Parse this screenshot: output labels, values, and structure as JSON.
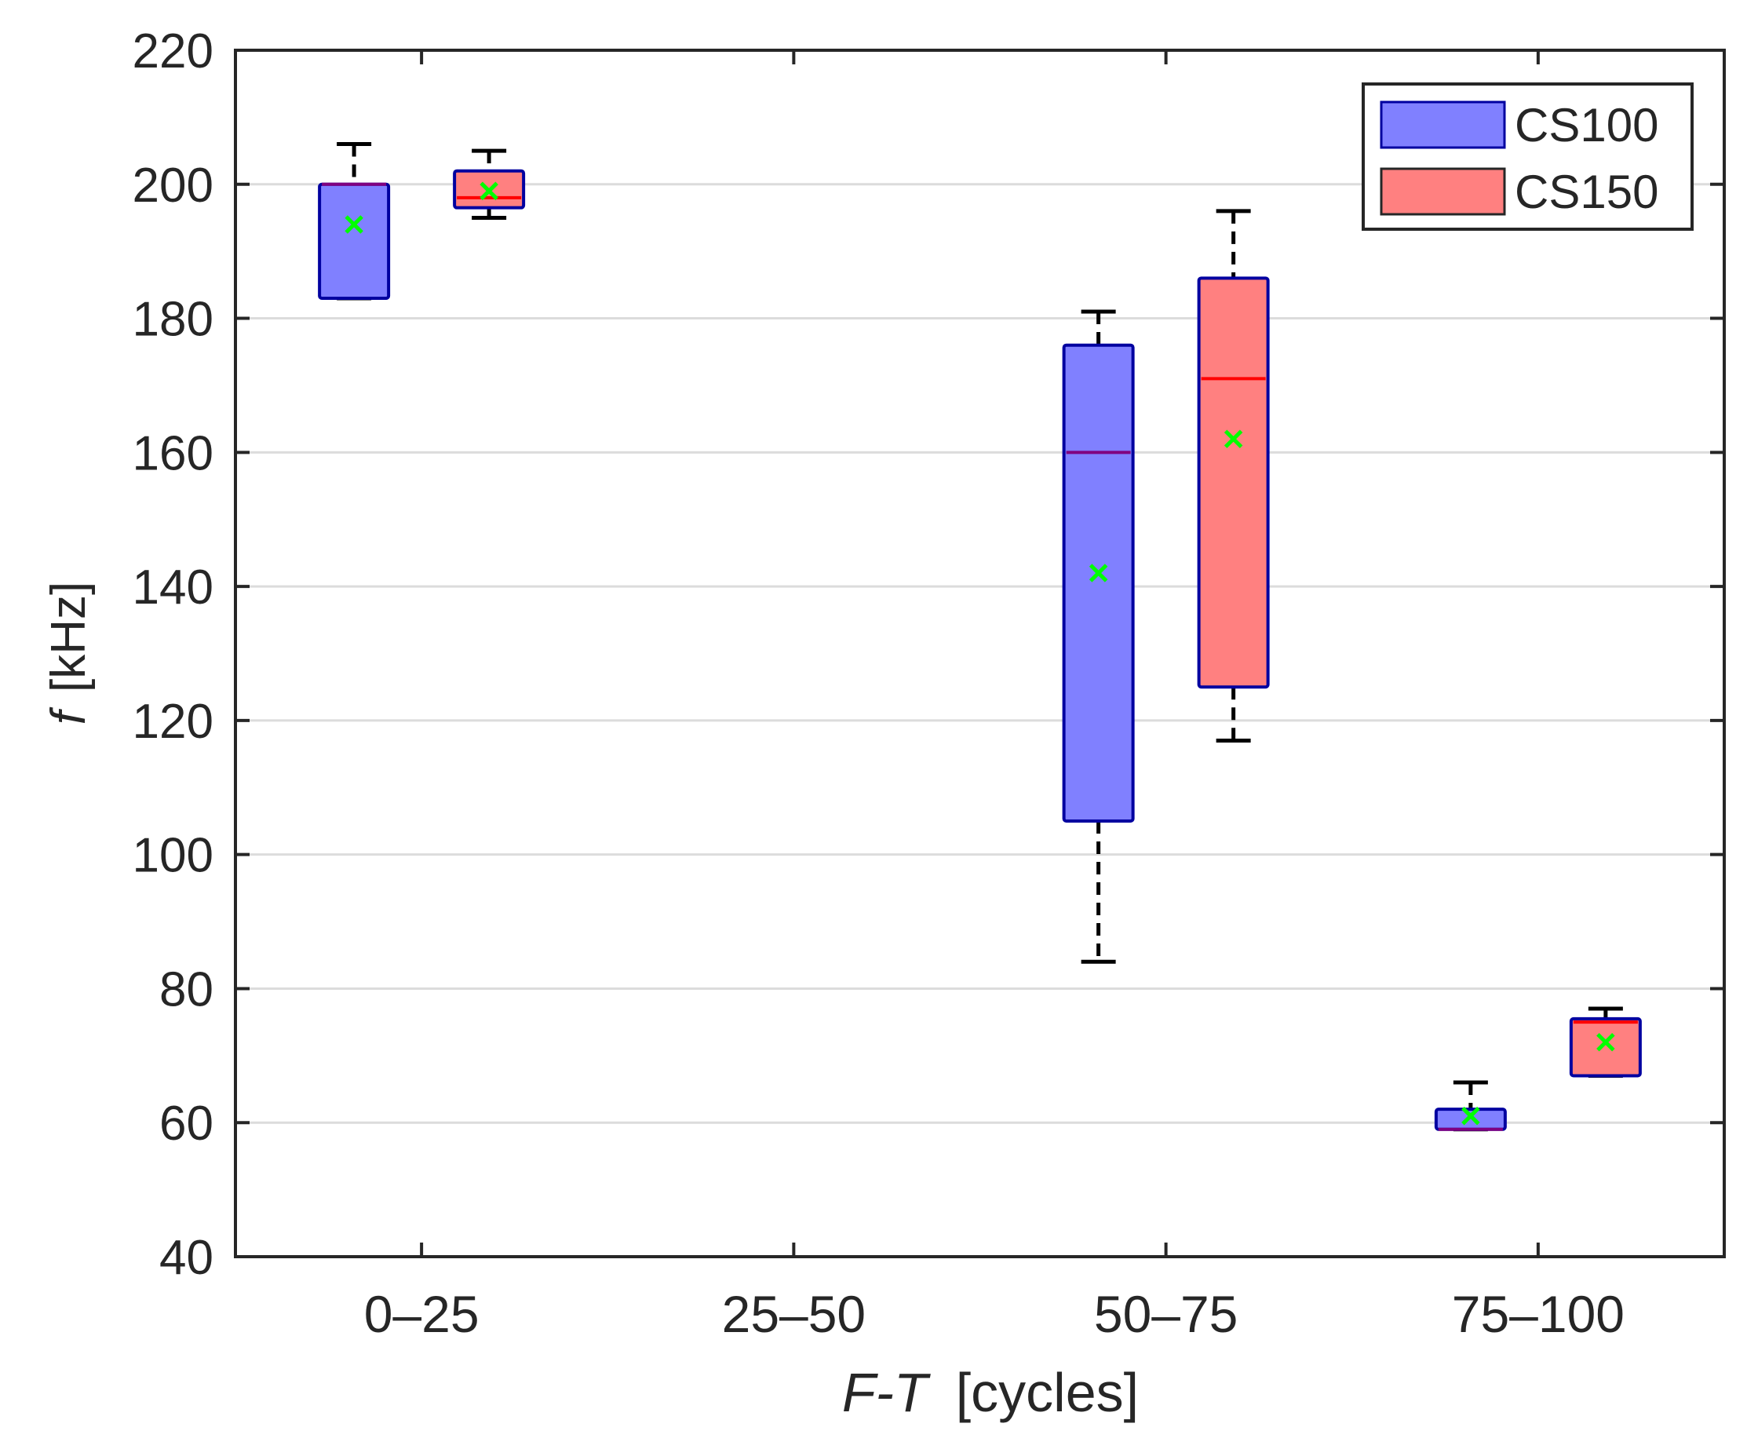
{
  "chart_data": {
    "type": "box",
    "title": "",
    "xlabel_italic": "F-T",
    "xlabel_unit": "[cycles]",
    "ylabel_italic": "f",
    "ylabel_unit": "[kHz]",
    "ylim": [
      40,
      220
    ],
    "yticks": [
      40,
      60,
      80,
      100,
      120,
      140,
      160,
      180,
      200,
      220
    ],
    "grid": "horizontal",
    "categories": [
      "0–25",
      "25–50",
      "50–75",
      "75–100"
    ],
    "legend_position": "top-right",
    "series": [
      {
        "name": "CS100",
        "fill": "#8080ff",
        "median_color": "#800080",
        "boxes": [
          {
            "category": "0–25",
            "whisker_low": 183,
            "q1": 183,
            "median": 200,
            "q3": 200,
            "whisker_high": 206,
            "mean": 194
          },
          null,
          {
            "category": "50–75",
            "whisker_low": 84,
            "q1": 105,
            "median": 160,
            "q3": 176,
            "whisker_high": 181,
            "mean": 142
          },
          {
            "category": "75–100",
            "whisker_low": 59,
            "q1": 59,
            "median": 59,
            "q3": 62,
            "whisker_high": 66,
            "mean": 61
          }
        ]
      },
      {
        "name": "CS150",
        "fill": "#ff8080",
        "median_color": "#ff0000",
        "boxes": [
          {
            "category": "0–25",
            "whisker_low": 195,
            "q1": 196.5,
            "median": 198,
            "q3": 202,
            "whisker_high": 205,
            "mean": 199
          },
          null,
          {
            "category": "50–75",
            "whisker_low": 117,
            "q1": 125,
            "median": 171,
            "q3": 186,
            "whisker_high": 196,
            "mean": 162
          },
          {
            "category": "75–100",
            "whisker_low": 67,
            "q1": 67,
            "median": 75,
            "q3": 75.5,
            "whisker_high": 77,
            "mean": 72
          }
        ]
      }
    ],
    "colors": {
      "box_edge": "#0000a0",
      "whisker": "#000000",
      "mean_marker": "#00ff00",
      "grid": "#dcdcdc",
      "axis": "#262626"
    }
  }
}
